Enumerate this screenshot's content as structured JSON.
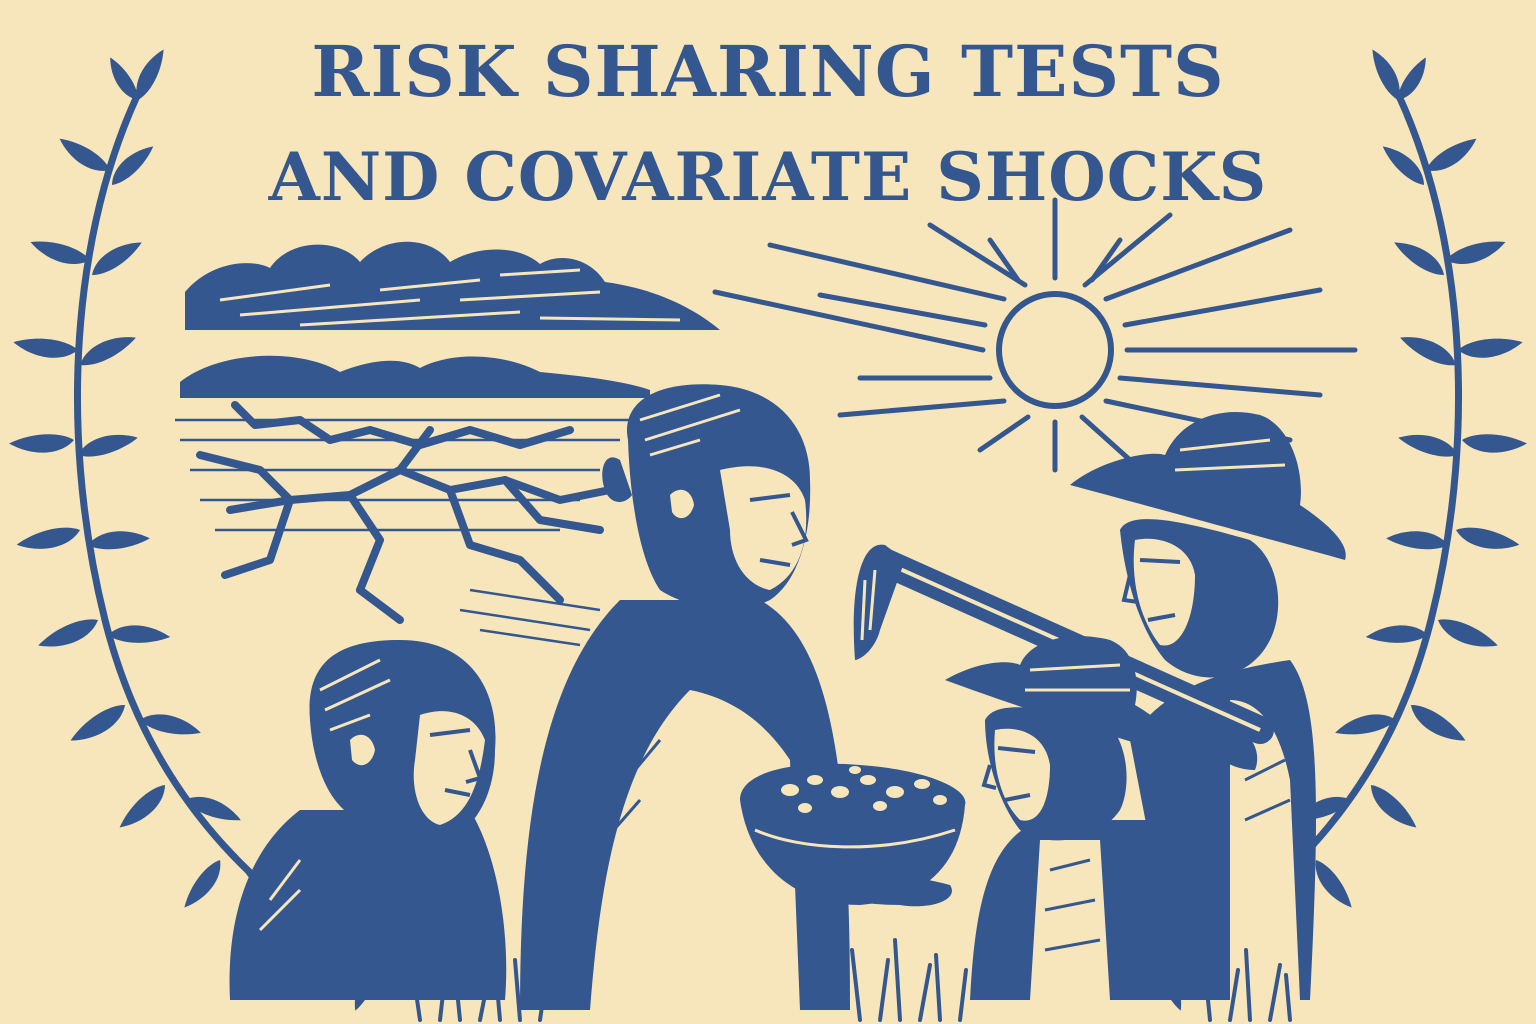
{
  "poster": {
    "title_line_1": "RISK SHARING TESTS",
    "title_line_2": "AND COVARIATE SHOCKS"
  },
  "colors": {
    "background": "#f7e6bb",
    "ink": "#34578f"
  },
  "illustration": {
    "style": "linocut-print",
    "elements": [
      "laurel-branch",
      "cloud",
      "cracked-dry-earth",
      "sun",
      "young-man",
      "woman-with-bowl",
      "farmer-with-hoe",
      "farmer-with-hat",
      "grass"
    ]
  }
}
